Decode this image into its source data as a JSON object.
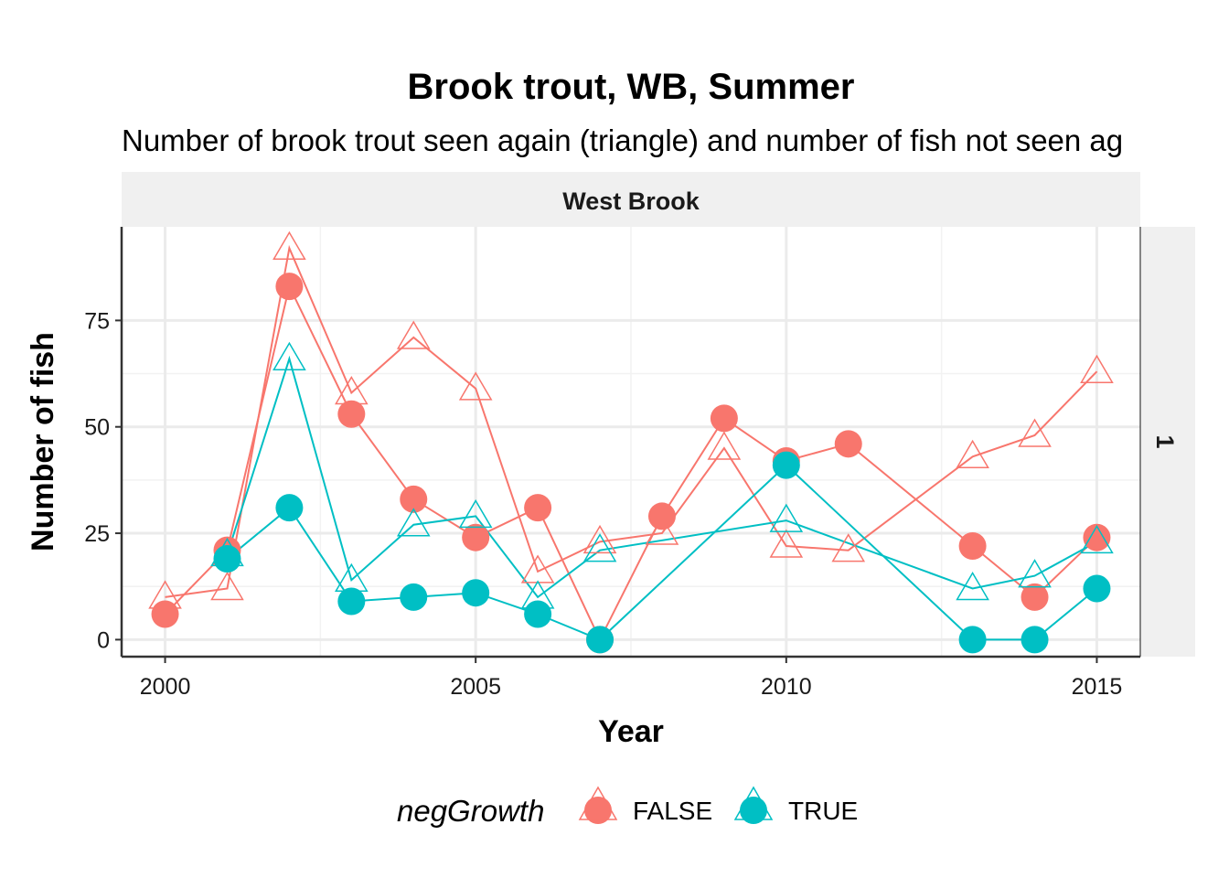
{
  "chart_data": {
    "type": "line",
    "title": "Brook trout, WB, Summer",
    "subtitle": "Number of brook trout seen again (triangle) and number of fish not seen ag",
    "facet_column_label": "West Brook",
    "facet_row_label": "1",
    "xlabel": "Year",
    "ylabel": "Number of fish",
    "xlim": [
      1999.3,
      2015.7
    ],
    "ylim": [
      -4,
      97
    ],
    "x_ticks": [
      2000,
      2005,
      2010,
      2015
    ],
    "y_ticks": [
      0,
      25,
      50,
      75
    ],
    "grid": true,
    "legend": {
      "title": "negGrowth",
      "position": "bottom",
      "entries": [
        "FALSE",
        "TRUE"
      ]
    },
    "series": [
      {
        "name": "FALSE",
        "color": "#F8766D",
        "shape": "triangle-open",
        "points": [
          [
            2000,
            10
          ],
          [
            2001,
            12
          ],
          [
            2002,
            92
          ],
          [
            2003,
            58
          ],
          [
            2004,
            71
          ],
          [
            2005,
            59
          ],
          [
            2006,
            16
          ],
          [
            2007,
            23
          ],
          [
            2008,
            25
          ],
          [
            2009,
            45
          ],
          [
            2010,
            22
          ],
          [
            2011,
            21
          ],
          [
            2013,
            43
          ],
          [
            2014,
            48
          ],
          [
            2015,
            63
          ]
        ]
      },
      {
        "name": "FALSE",
        "color": "#F8766D",
        "shape": "circle",
        "points": [
          [
            2000,
            6
          ],
          [
            2001,
            21
          ],
          [
            2002,
            83
          ],
          [
            2003,
            53
          ],
          [
            2004,
            33
          ],
          [
            2005,
            24
          ],
          [
            2006,
            31
          ],
          [
            2007,
            0
          ],
          [
            2008,
            29
          ],
          [
            2009,
            52
          ],
          [
            2010,
            42
          ],
          [
            2011,
            46
          ],
          [
            2013,
            22
          ],
          [
            2014,
            10
          ],
          [
            2015,
            24
          ]
        ]
      },
      {
        "name": "TRUE",
        "color": "#00BFC4",
        "shape": "triangle-open",
        "points": [
          [
            2001,
            20
          ],
          [
            2002,
            66
          ],
          [
            2003,
            14
          ],
          [
            2004,
            27
          ],
          [
            2005,
            29
          ],
          [
            2006,
            10
          ],
          [
            2007,
            21
          ],
          [
            2010,
            28
          ],
          [
            2013,
            12
          ],
          [
            2014,
            15
          ],
          [
            2015,
            23
          ]
        ]
      },
      {
        "name": "TRUE",
        "color": "#00BFC4",
        "shape": "circle",
        "points": [
          [
            2001,
            19
          ],
          [
            2002,
            31
          ],
          [
            2003,
            9
          ],
          [
            2004,
            10
          ],
          [
            2005,
            11
          ],
          [
            2006,
            6
          ],
          [
            2007,
            0
          ],
          [
            2010,
            41
          ],
          [
            2013,
            0
          ],
          [
            2014,
            0
          ],
          [
            2015,
            12
          ]
        ]
      }
    ]
  }
}
